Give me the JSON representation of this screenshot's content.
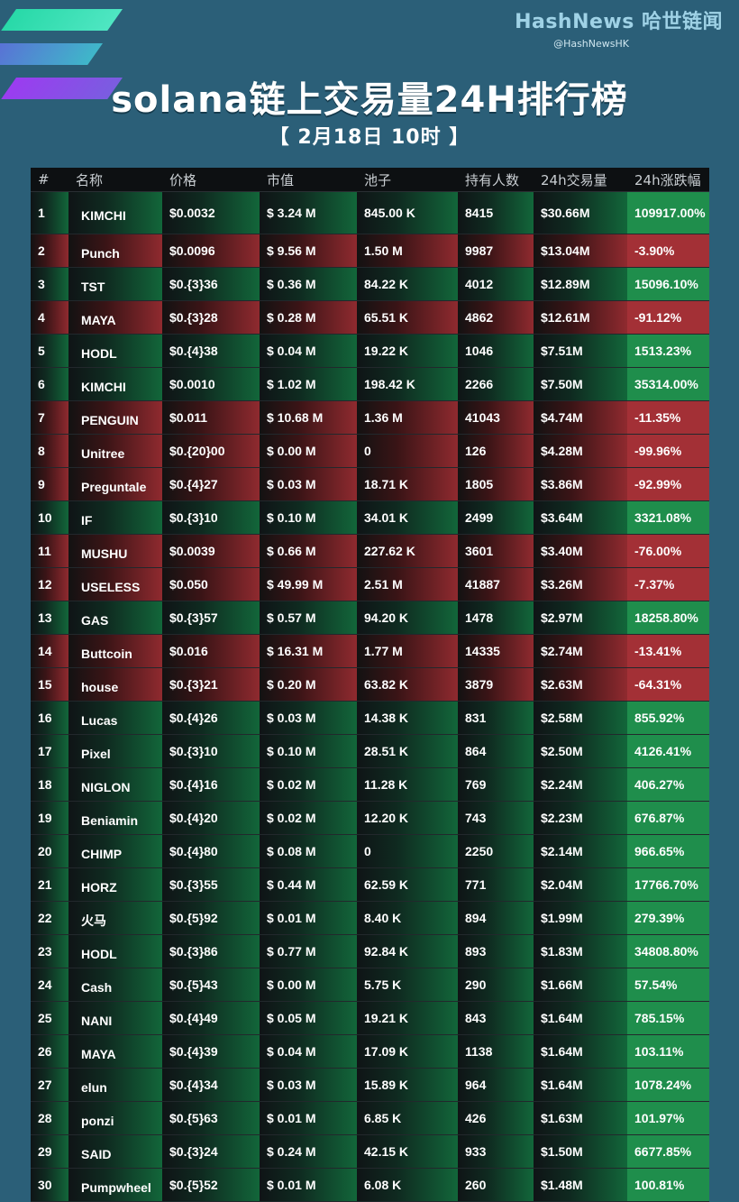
{
  "brand": {
    "name": "HashNews 哈世链闻",
    "handle": "@HashNewsHK"
  },
  "title": "solana链上交易量24H排行榜",
  "subtitle": "【 2月18日 10时 】",
  "colors": {
    "background": "#2b5f78",
    "up": "#1f8e4c",
    "down": "#a33036",
    "table_bg": "#101316"
  },
  "table": {
    "headers": [
      "#",
      "名称",
      "价格",
      "市值",
      "池子",
      "持有人数",
      "24h交易量",
      "24h涨跌幅"
    ],
    "rows": [
      {
        "rank": "1",
        "name": "KIMCHI",
        "price": "$0.0032",
        "mcap": "$ 3.24 M",
        "pool": "845.00 K",
        "holders": "8415",
        "volume": "$30.66M",
        "change": "109917.00%",
        "dir": "up"
      },
      {
        "rank": "2",
        "name": "Punch",
        "price": "$0.0096",
        "mcap": "$ 9.56 M",
        "pool": "1.50 M",
        "holders": "9987",
        "volume": "$13.04M",
        "change": "-3.90%",
        "dir": "down"
      },
      {
        "rank": "3",
        "name": "TST",
        "price": "$0.{3}36",
        "mcap": "$ 0.36 M",
        "pool": "84.22 K",
        "holders": "4012",
        "volume": "$12.89M",
        "change": "15096.10%",
        "dir": "up"
      },
      {
        "rank": "4",
        "name": "MAYA",
        "price": "$0.{3}28",
        "mcap": "$ 0.28 M",
        "pool": "65.51 K",
        "holders": "4862",
        "volume": "$12.61M",
        "change": "-91.12%",
        "dir": "down"
      },
      {
        "rank": "5",
        "name": "HODL",
        "price": "$0.{4}38",
        "mcap": "$ 0.04 M",
        "pool": "19.22 K",
        "holders": "1046",
        "volume": "$7.51M",
        "change": "1513.23%",
        "dir": "up"
      },
      {
        "rank": "6",
        "name": "KIMCHI",
        "price": "$0.0010",
        "mcap": "$ 1.02 M",
        "pool": "198.42 K",
        "holders": "2266",
        "volume": "$7.50M",
        "change": "35314.00%",
        "dir": "up"
      },
      {
        "rank": "7",
        "name": "PENGUIN",
        "price": "$0.011",
        "mcap": "$ 10.68 M",
        "pool": "1.36 M",
        "holders": "41043",
        "volume": "$4.74M",
        "change": "-11.35%",
        "dir": "down"
      },
      {
        "rank": "8",
        "name": "Unitree",
        "price": "$0.{20}00",
        "mcap": "$ 0.00 M",
        "pool": "0",
        "holders": "126",
        "volume": "$4.28M",
        "change": "-99.96%",
        "dir": "down"
      },
      {
        "rank": "9",
        "name": "Preguntale",
        "price": "$0.{4}27",
        "mcap": "$ 0.03 M",
        "pool": "18.71 K",
        "holders": "1805",
        "volume": "$3.86M",
        "change": "-92.99%",
        "dir": "down"
      },
      {
        "rank": "10",
        "name": "IF",
        "price": "$0.{3}10",
        "mcap": "$ 0.10 M",
        "pool": "34.01 K",
        "holders": "2499",
        "volume": "$3.64M",
        "change": "3321.08%",
        "dir": "up"
      },
      {
        "rank": "11",
        "name": "MUSHU",
        "price": "$0.0039",
        "mcap": "$ 0.66 M",
        "pool": "227.62 K",
        "holders": "3601",
        "volume": "$3.40M",
        "change": "-76.00%",
        "dir": "down"
      },
      {
        "rank": "12",
        "name": "USELESS",
        "price": "$0.050",
        "mcap": "$ 49.99 M",
        "pool": "2.51 M",
        "holders": "41887",
        "volume": "$3.26M",
        "change": "-7.37%",
        "dir": "down"
      },
      {
        "rank": "13",
        "name": "GAS",
        "price": "$0.{3}57",
        "mcap": "$ 0.57 M",
        "pool": "94.20 K",
        "holders": "1478",
        "volume": "$2.97M",
        "change": "18258.80%",
        "dir": "up"
      },
      {
        "rank": "14",
        "name": "Buttcoin",
        "price": "$0.016",
        "mcap": "$ 16.31 M",
        "pool": "1.77 M",
        "holders": "14335",
        "volume": "$2.74M",
        "change": "-13.41%",
        "dir": "down"
      },
      {
        "rank": "15",
        "name": "house",
        "price": "$0.{3}21",
        "mcap": "$ 0.20 M",
        "pool": "63.82 K",
        "holders": "3879",
        "volume": "$2.63M",
        "change": "-64.31%",
        "dir": "down"
      },
      {
        "rank": "16",
        "name": "Lucas",
        "price": "$0.{4}26",
        "mcap": "$ 0.03 M",
        "pool": "14.38 K",
        "holders": "831",
        "volume": "$2.58M",
        "change": "855.92%",
        "dir": "up"
      },
      {
        "rank": "17",
        "name": "Pixel",
        "price": "$0.{3}10",
        "mcap": "$ 0.10 M",
        "pool": "28.51 K",
        "holders": "864",
        "volume": "$2.50M",
        "change": "4126.41%",
        "dir": "up"
      },
      {
        "rank": "18",
        "name": "NIGLON",
        "price": "$0.{4}16",
        "mcap": "$ 0.02 M",
        "pool": "11.28 K",
        "holders": "769",
        "volume": "$2.24M",
        "change": "406.27%",
        "dir": "up"
      },
      {
        "rank": "19",
        "name": "Beniamin",
        "price": "$0.{4}20",
        "mcap": "$ 0.02 M",
        "pool": "12.20 K",
        "holders": "743",
        "volume": "$2.23M",
        "change": "676.87%",
        "dir": "up"
      },
      {
        "rank": "20",
        "name": "CHIMP",
        "price": "$0.{4}80",
        "mcap": "$ 0.08 M",
        "pool": "0",
        "holders": "2250",
        "volume": "$2.14M",
        "change": "966.65%",
        "dir": "up"
      },
      {
        "rank": "21",
        "name": "HORZ",
        "price": "$0.{3}55",
        "mcap": "$ 0.44 M",
        "pool": "62.59 K",
        "holders": "771",
        "volume": "$2.04M",
        "change": "17766.70%",
        "dir": "up"
      },
      {
        "rank": "22",
        "name": "火马",
        "price": "$0.{5}92",
        "mcap": "$ 0.01 M",
        "pool": "8.40 K",
        "holders": "894",
        "volume": "$1.99M",
        "change": "279.39%",
        "dir": "up"
      },
      {
        "rank": "23",
        "name": "HODL",
        "price": "$0.{3}86",
        "mcap": "$ 0.77 M",
        "pool": "92.84 K",
        "holders": "893",
        "volume": "$1.83M",
        "change": "34808.80%",
        "dir": "up"
      },
      {
        "rank": "24",
        "name": "Cash",
        "price": "$0.{5}43",
        "mcap": "$ 0.00 M",
        "pool": "5.75 K",
        "holders": "290",
        "volume": "$1.66M",
        "change": "57.54%",
        "dir": "up"
      },
      {
        "rank": "25",
        "name": "NANI",
        "price": "$0.{4}49",
        "mcap": "$ 0.05 M",
        "pool": "19.21 K",
        "holders": "843",
        "volume": "$1.64M",
        "change": "785.15%",
        "dir": "up"
      },
      {
        "rank": "26",
        "name": "MAYA",
        "price": "$0.{4}39",
        "mcap": "$ 0.04 M",
        "pool": "17.09 K",
        "holders": "1138",
        "volume": "$1.64M",
        "change": "103.11%",
        "dir": "up"
      },
      {
        "rank": "27",
        "name": "elun",
        "price": "$0.{4}34",
        "mcap": "$ 0.03 M",
        "pool": "15.89 K",
        "holders": "964",
        "volume": "$1.64M",
        "change": "1078.24%",
        "dir": "up"
      },
      {
        "rank": "28",
        "name": "ponzi",
        "price": "$0.{5}63",
        "mcap": "$ 0.01 M",
        "pool": "6.85 K",
        "holders": "426",
        "volume": "$1.63M",
        "change": "101.97%",
        "dir": "up"
      },
      {
        "rank": "29",
        "name": "SAID",
        "price": "$0.{3}24",
        "mcap": "$ 0.24 M",
        "pool": "42.15 K",
        "holders": "933",
        "volume": "$1.50M",
        "change": "6677.85%",
        "dir": "up"
      },
      {
        "rank": "30",
        "name": "Pumpwheel",
        "price": "$0.{5}52",
        "mcap": "$ 0.01 M",
        "pool": "6.08 K",
        "holders": "260",
        "volume": "$1.48M",
        "change": "100.81%",
        "dir": "up"
      }
    ]
  }
}
